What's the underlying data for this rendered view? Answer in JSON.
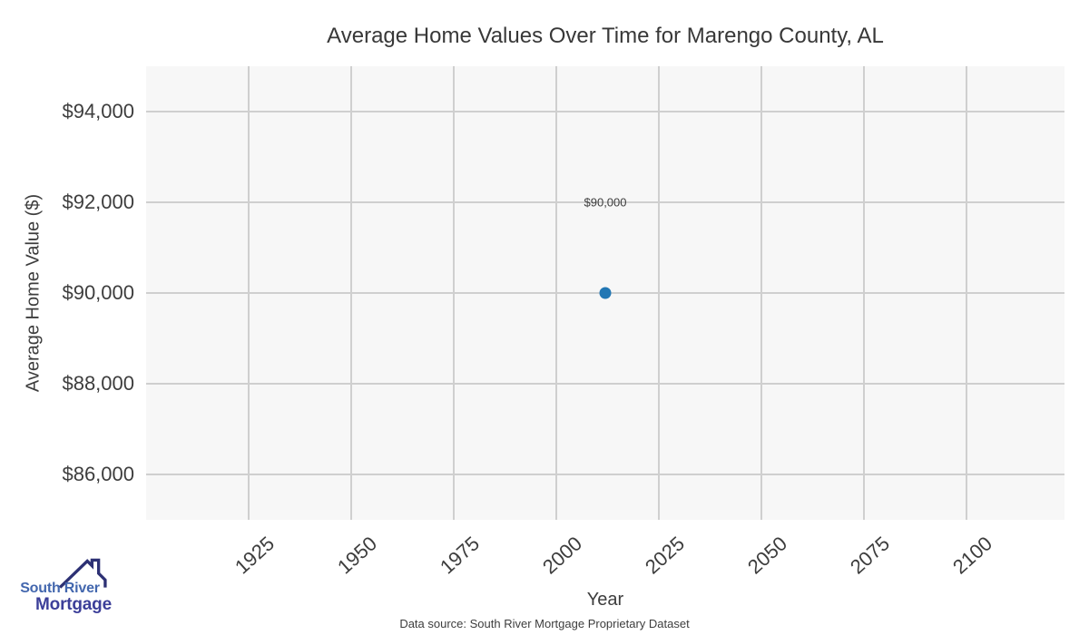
{
  "chart_data": {
    "type": "scatter",
    "title": "Average Home Values Over Time for Marengo County, AL",
    "xlabel": "Year",
    "ylabel": "Average Home Value ($)",
    "series": [
      {
        "name": "Average Home Value",
        "x": [
          2012
        ],
        "y": [
          90000
        ]
      }
    ],
    "x_ticks": [
      1925,
      1950,
      1975,
      2000,
      2025,
      2050,
      2075,
      2100
    ],
    "y_ticks": [
      86000,
      88000,
      90000,
      92000,
      94000
    ],
    "y_tick_labels": [
      "$86,000",
      "$88,000",
      "$90,000",
      "$92,000",
      "$94,000"
    ],
    "xlim": [
      1900,
      2124
    ],
    "ylim": [
      85000,
      95000
    ],
    "grid": true,
    "legend": false,
    "annotation": {
      "text": "$90,000",
      "x": 2012,
      "y": 92000
    },
    "point_color": "#2277b4",
    "plot_bg": "#f7f7f7",
    "grid_color": "#cfcfcf",
    "text_color": "#3d3d3d"
  },
  "footer": {
    "source": "Data source: South River Mortgage Proprietary Dataset"
  },
  "logo": {
    "line1": "South River",
    "line2": "Mortgage",
    "line1_color": "#4367ae",
    "line2_color": "#3c3f99",
    "roof_color": "#2d3174"
  }
}
